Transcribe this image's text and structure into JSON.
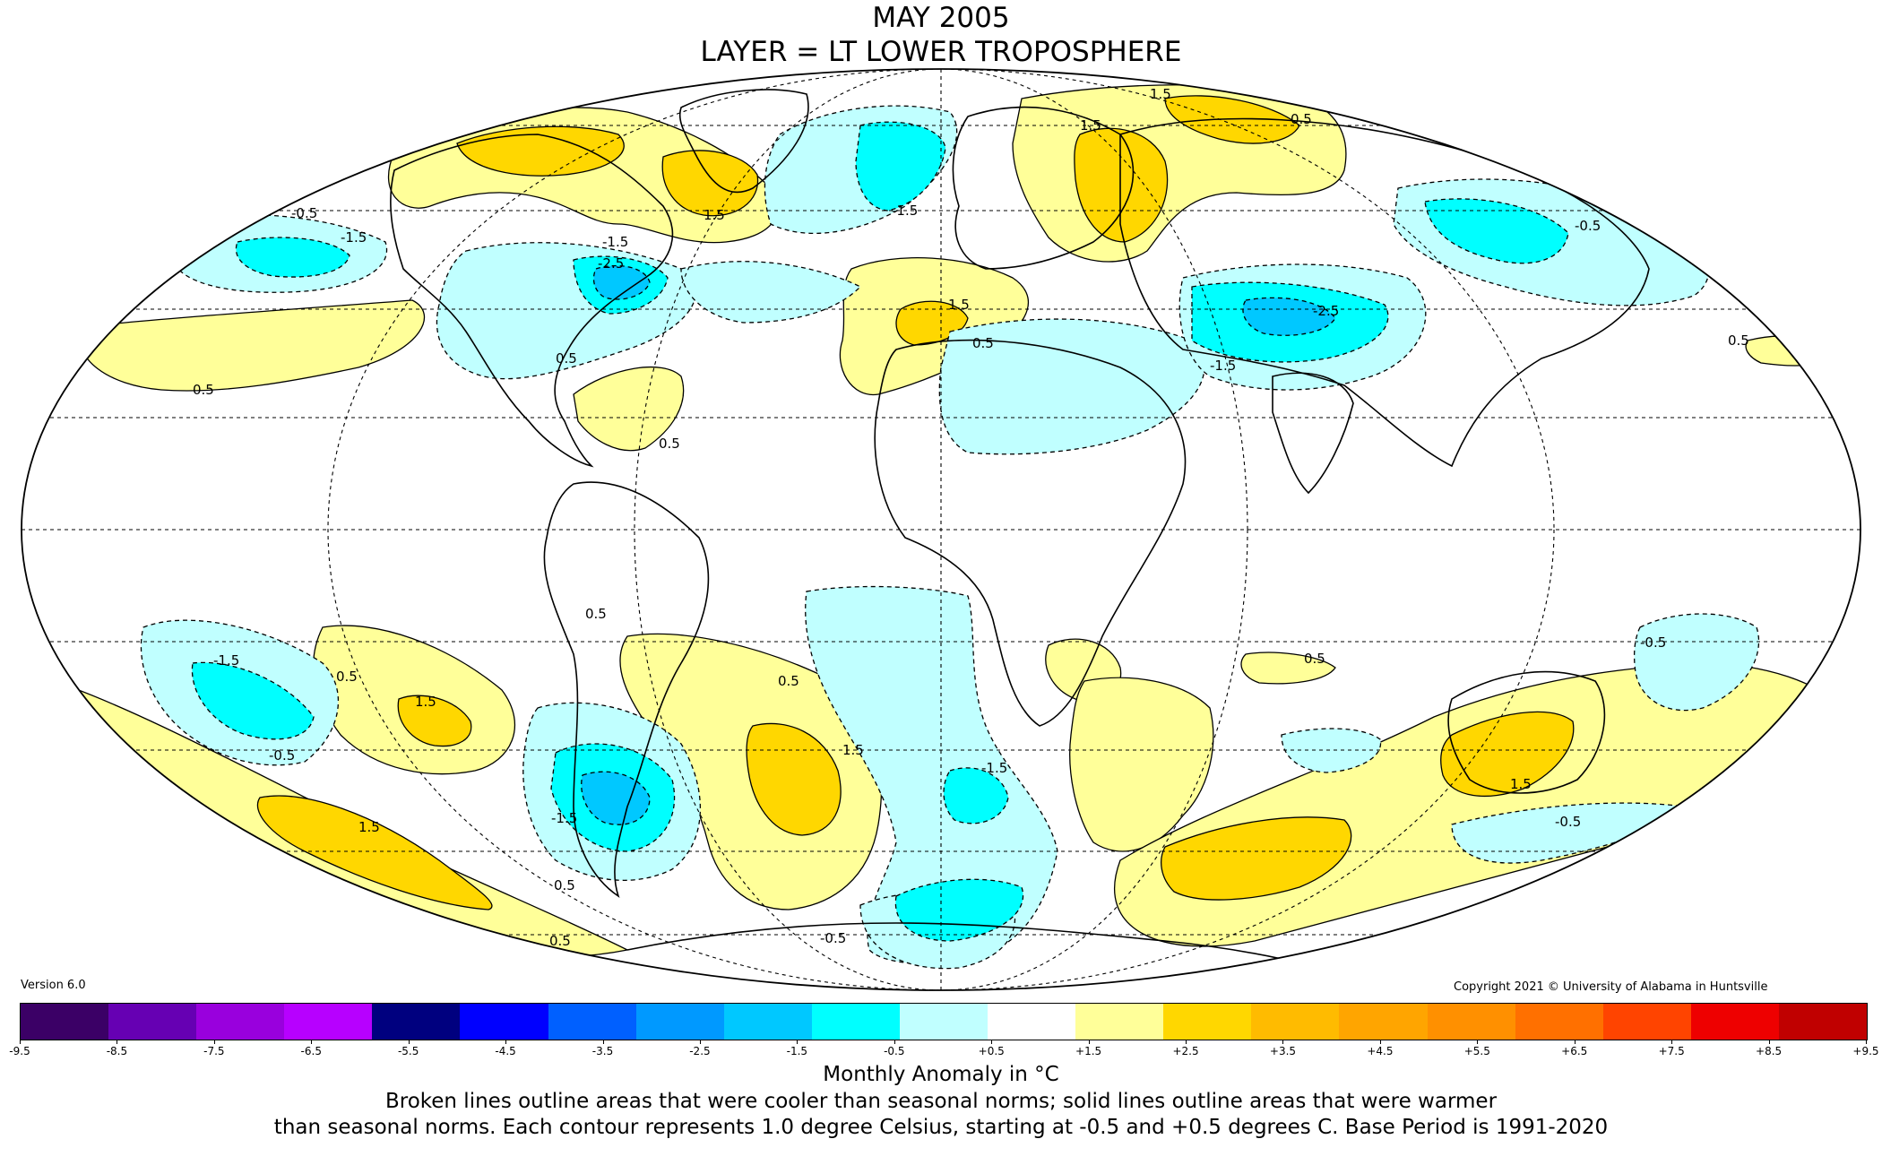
{
  "title": {
    "line1": "MAY 2005",
    "line2": "LAYER = LT LOWER TROPOSPHERE"
  },
  "version": "Version 6.0",
  "copyright": "Copyright 2021 © University of Alabama in Huntsville",
  "colorbar": {
    "colors": [
      "#3b0066",
      "#6600b3",
      "#9900dd",
      "#b700ff",
      "#00007f",
      "#0000ff",
      "#0060ff",
      "#0099ff",
      "#00c8ff",
      "#00ffff",
      "#c0ffff",
      "#ffffff",
      "#ffff99",
      "#ffd700",
      "#ffbb00",
      "#ffa500",
      "#ff9000",
      "#ff7000",
      "#ff4400",
      "#ee0000",
      "#c00000"
    ],
    "ticks": [
      "-9.5",
      "-8.5",
      "-7.5",
      "-6.5",
      "-5.5",
      "-4.5",
      "-3.5",
      "-2.5",
      "-1.5",
      "-0.5",
      "+0.5",
      "+1.5",
      "+2.5",
      "+3.5",
      "+4.5",
      "+5.5",
      "+6.5",
      "+7.5",
      "+8.5",
      "+9.5"
    ],
    "label": "Monthly Anomaly in °C"
  },
  "note": {
    "line1": "Broken lines outline areas that were cooler than seasonal norms; solid lines outline areas that were warmer",
    "line2": "than seasonal norms. Each contour represents 1.0 degree Celsius, starting at -0.5 and +0.5 degrees C. Base Period is 1991-2020"
  },
  "contour_labels": [
    "-0.5",
    "-1.5",
    "-1.5",
    "-2.5",
    "-1.5",
    "-1.5",
    "-2.5",
    "-0.5",
    "-1.5",
    "-0.5",
    "-1.5",
    "-1.5",
    "-0.5",
    "-0.5",
    "-0.5",
    "0.5",
    "0.5",
    "0.5",
    "0.5",
    "1.5",
    "1.5",
    "1.5",
    "1.5",
    "1.5",
    "1.5",
    "0.5",
    "0.5",
    "0.5",
    "1.5",
    "0.5",
    "0.5",
    "1.5",
    "0.5",
    "0.5",
    "0.5"
  ],
  "colors": {
    "cool_light": "#c0ffff",
    "cool_mid": "#00ffff",
    "cool_deep": "#00c8ff",
    "warm_light": "#ffff99",
    "warm_mid": "#ffd700",
    "warm_deep": "#ffbb00"
  }
}
